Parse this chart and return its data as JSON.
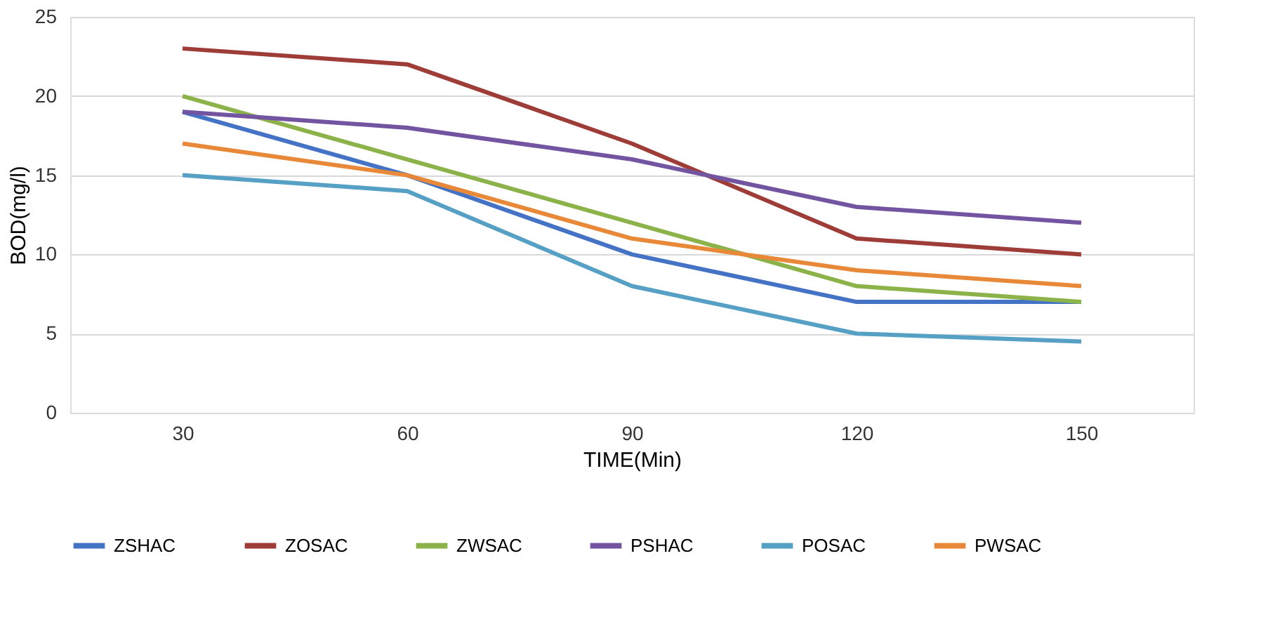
{
  "chart_data": {
    "type": "line",
    "xlabel": "TIME(Min)",
    "ylabel": "BOD(mg/l)",
    "categories": [
      "30",
      "60",
      "90",
      "120",
      "150"
    ],
    "ylim": [
      0,
      25
    ],
    "yticks": [
      0,
      5,
      10,
      15,
      20,
      25
    ],
    "grid": "y",
    "legend": "bottom",
    "marker": "none",
    "line_style": "solid",
    "series": [
      {
        "name": "ZSHAC",
        "color": "#4472c4",
        "values": [
          19,
          15,
          10,
          7,
          7
        ]
      },
      {
        "name": "ZOSAC",
        "color": "#9e3d37",
        "values": [
          23,
          22,
          17,
          11,
          10
        ]
      },
      {
        "name": "ZWSAC",
        "color": "#8bb34a",
        "values": [
          20,
          16,
          12,
          8,
          7
        ]
      },
      {
        "name": "PSHAC",
        "color": "#7354a1",
        "values": [
          19,
          18,
          16,
          13,
          12
        ]
      },
      {
        "name": "POSAC",
        "color": "#55a0c4",
        "values": [
          15,
          14,
          8,
          5,
          4.5
        ]
      },
      {
        "name": "PWSAC",
        "color": "#e8893a",
        "values": [
          17,
          15,
          11,
          9,
          8
        ]
      }
    ]
  }
}
